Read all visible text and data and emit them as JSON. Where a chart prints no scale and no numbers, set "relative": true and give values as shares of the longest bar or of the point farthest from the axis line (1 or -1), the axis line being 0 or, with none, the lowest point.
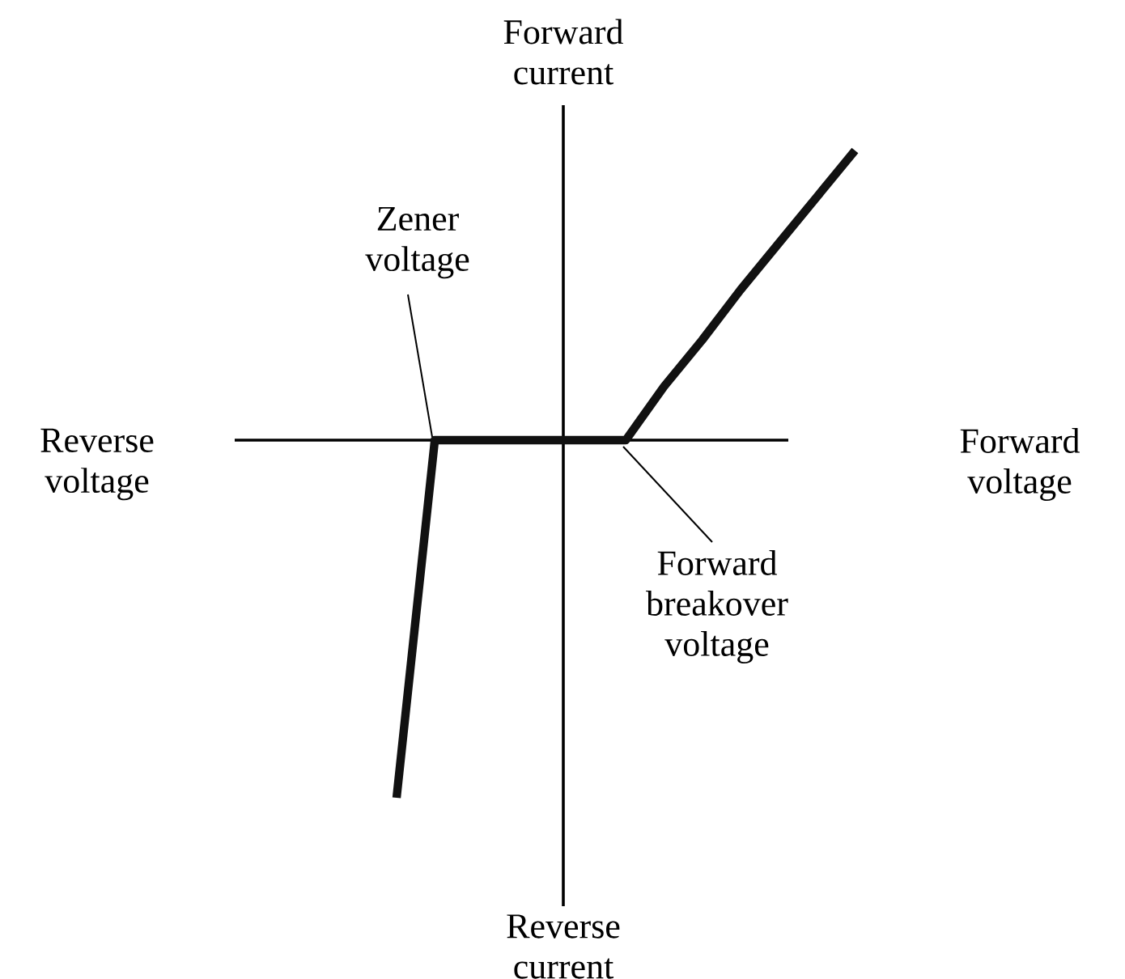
{
  "chart_data": {
    "type": "line",
    "relative": true,
    "xlabel": "Forward voltage",
    "ylabel": "Forward current",
    "categories": [
      null,
      null,
      null,
      null,
      null,
      null,
      null,
      null,
      null,
      null,
      null,
      null,
      null
    ],
    "series": [
      {
        "color": "#111111",
        "values": [
          -1,
          0,
          0,
          0,
          0,
          0,
          0,
          0.15,
          0.28,
          0.42,
          0.55,
          0.68,
          0.81
        ]
      }
    ],
    "annotations": [
      "Reverse voltage",
      "Reverse current",
      "Zener voltage",
      "Forward breakover voltage"
    ]
  }
}
